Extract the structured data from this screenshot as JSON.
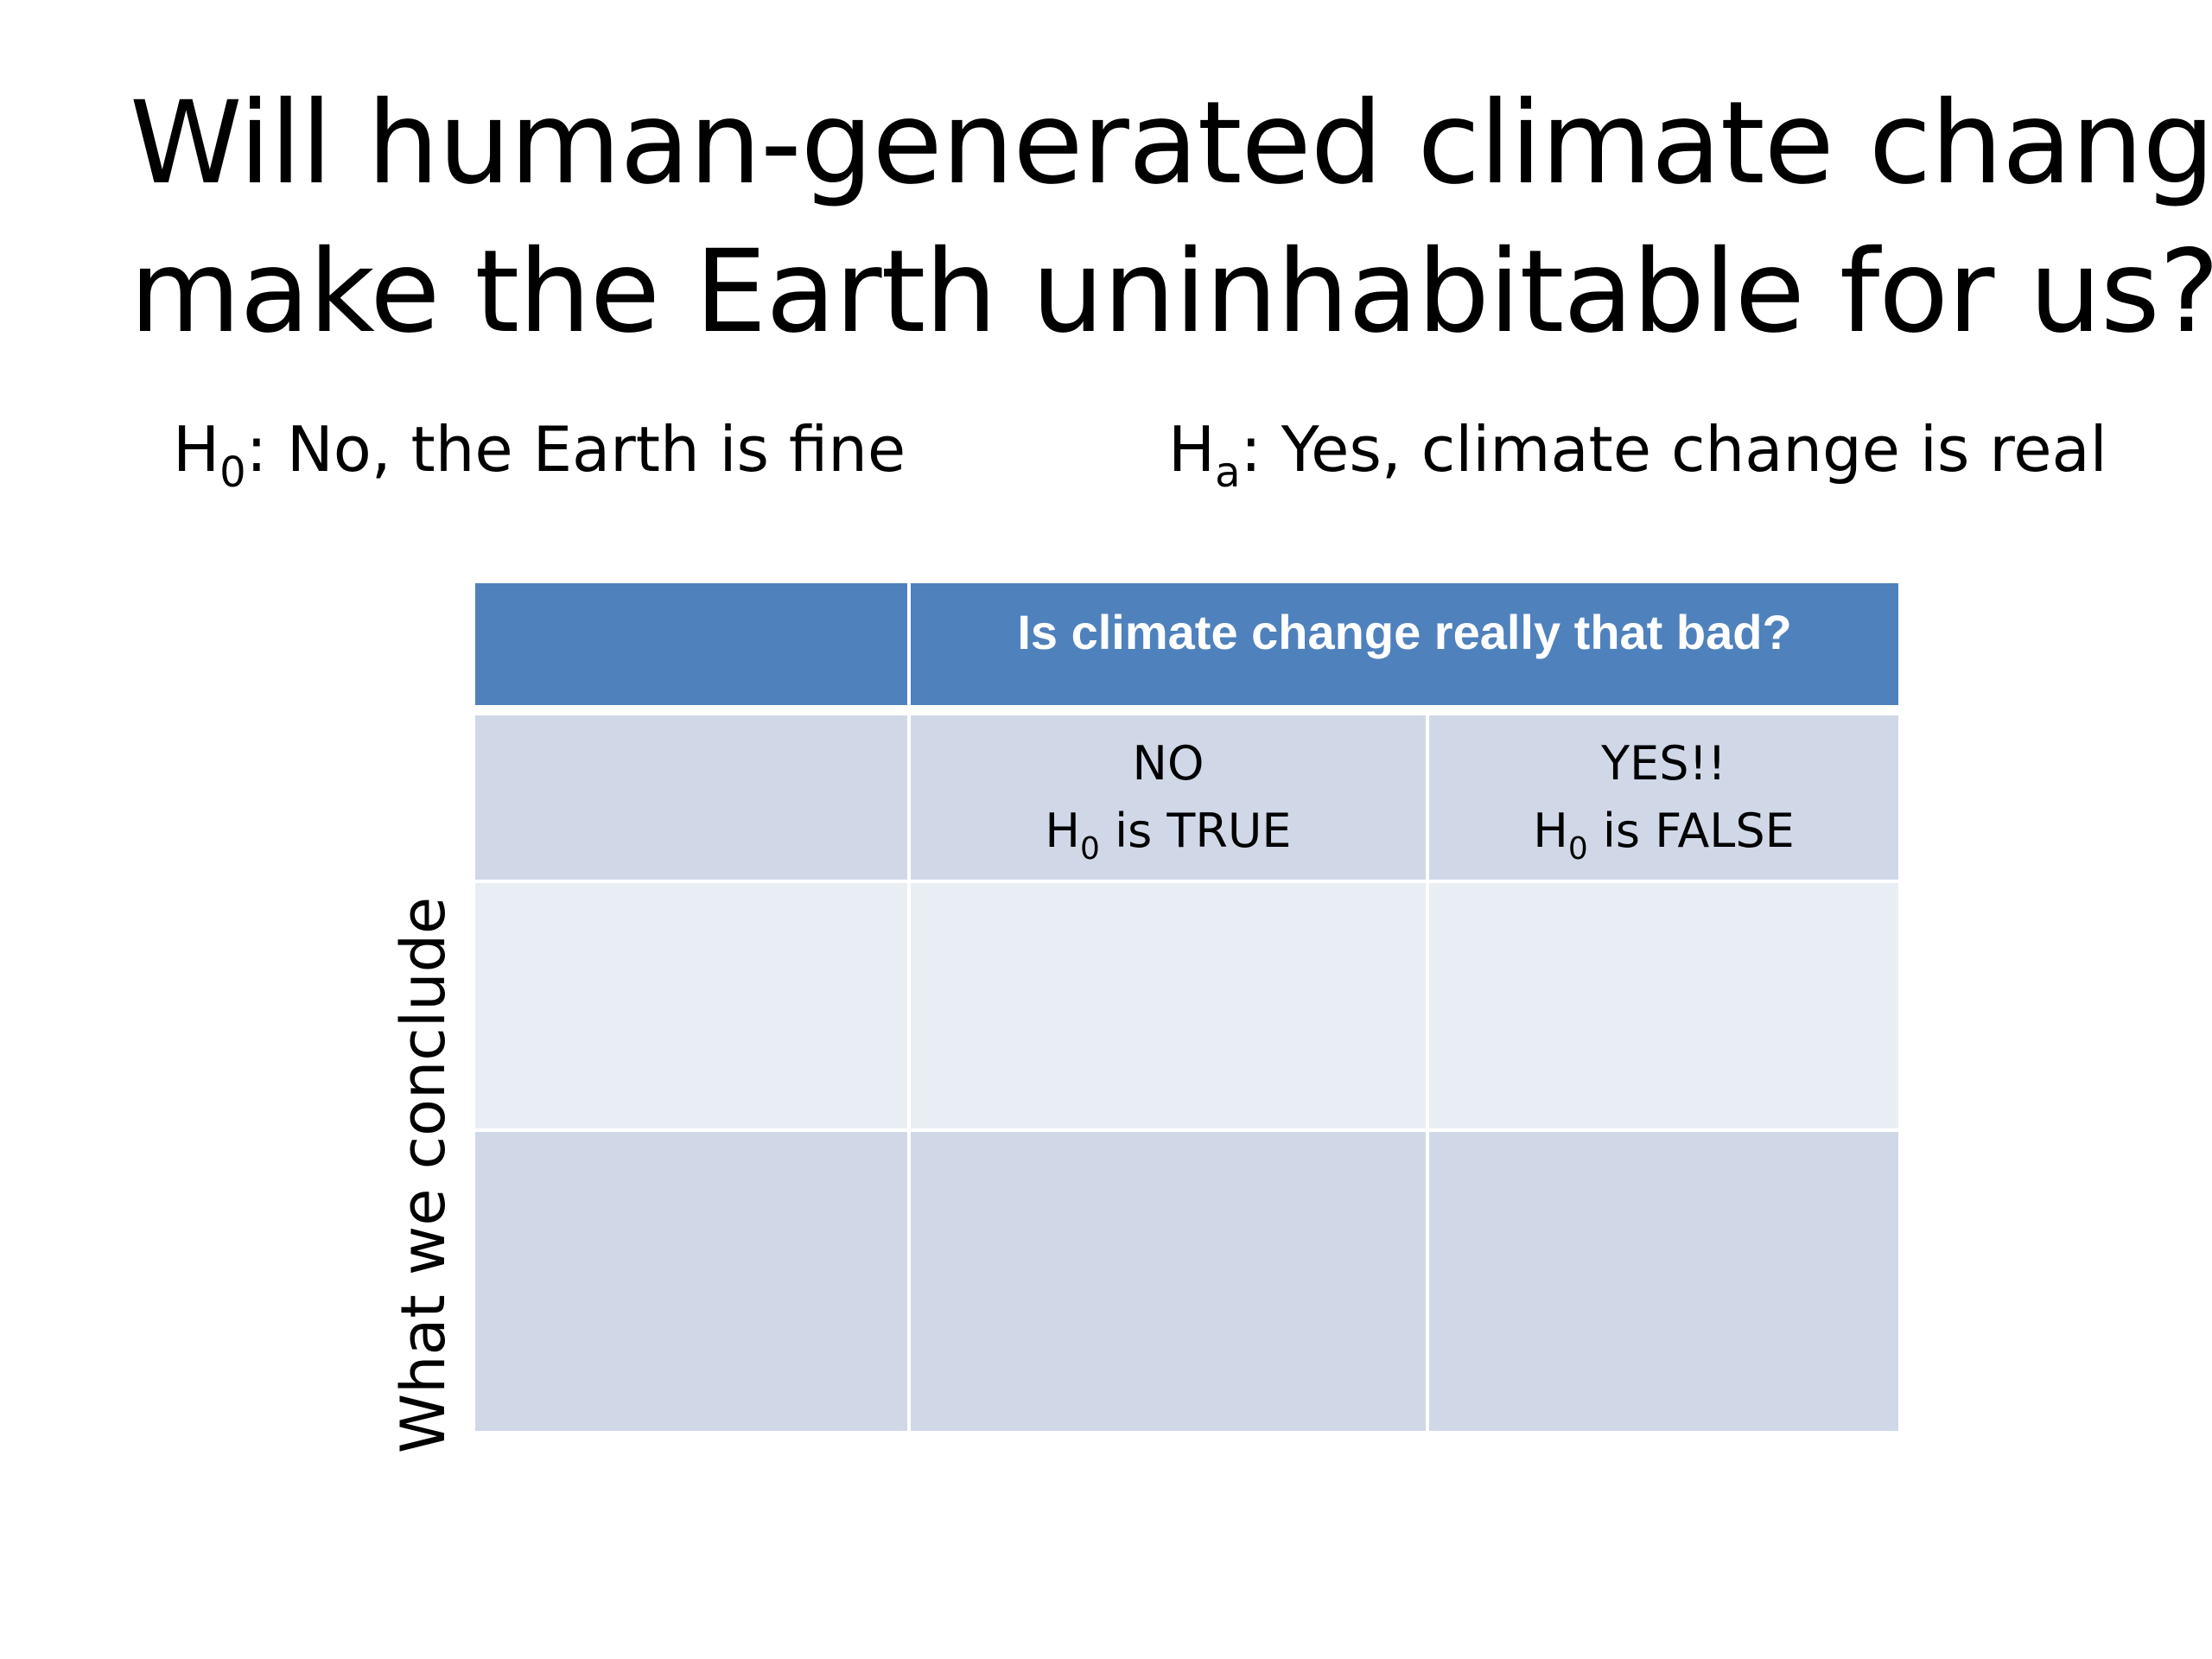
{
  "slide": {
    "title_line1": "Will human-generated climate change",
    "title_line2": "make the Earth uninhabitable for us?",
    "null_hypothesis": {
      "symbol": "H",
      "subscript": "0",
      "text": ": No, the Earth is fine"
    },
    "alt_hypothesis": {
      "symbol": "H",
      "subscript": "a",
      "text": ": Yes, climate change is real"
    },
    "side_label": "What we conclude"
  },
  "table": {
    "header": "Is climate change really that bad?",
    "columns": [
      {
        "line1": "NO",
        "line2_symbol": "H",
        "line2_subscript": "0",
        "line2_text": " is TRUE"
      },
      {
        "line1": "YES!!",
        "line2_symbol": "H",
        "line2_subscript": "0",
        "line2_text": " is FALSE"
      }
    ]
  },
  "colors": {
    "header_fill": "#4f81bd",
    "band_dark": "#d0d8e8",
    "band_light": "#e9edf4",
    "header_text": "#ffffff"
  }
}
